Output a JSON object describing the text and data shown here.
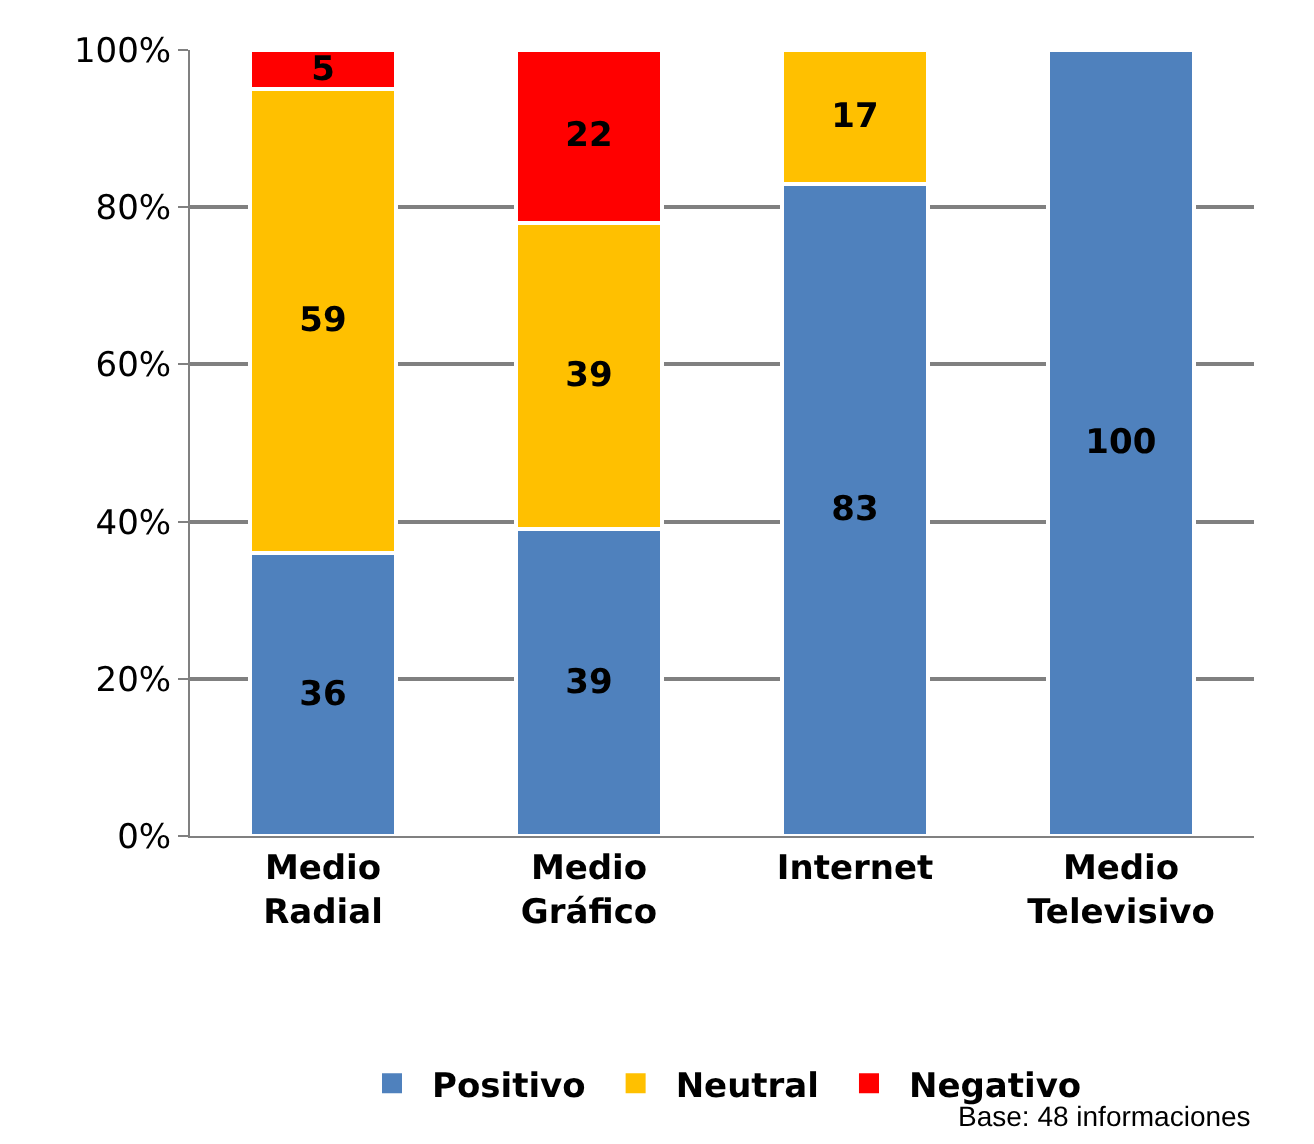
{
  "chart_data": {
    "type": "bar",
    "stacked": true,
    "categories": [
      "Medio Radial",
      "Medio Gráfico",
      "Internet",
      "Medio Televisivo"
    ],
    "series": [
      {
        "name": "Positivo",
        "color": "#4f81bd",
        "values": [
          36,
          39,
          83,
          100
        ]
      },
      {
        "name": "Neutral",
        "color": "#ffc000",
        "values": [
          59,
          39,
          17,
          null
        ]
      },
      {
        "name": "Negativo",
        "color": "#ff0000",
        "values": [
          5,
          22,
          null,
          null
        ]
      }
    ],
    "ylim": [
      0,
      100
    ],
    "yticks": [
      {
        "value": 0,
        "label": "0%"
      },
      {
        "value": 20,
        "label": "20%"
      },
      {
        "value": 40,
        "label": "40%"
      },
      {
        "value": 60,
        "label": "60%"
      },
      {
        "value": 80,
        "label": "80%"
      },
      {
        "value": 100,
        "label": "100%"
      }
    ],
    "grid": "y",
    "legend": "bottom",
    "data_labels": true,
    "annotations": [
      "Base: 48 informaciones"
    ]
  }
}
